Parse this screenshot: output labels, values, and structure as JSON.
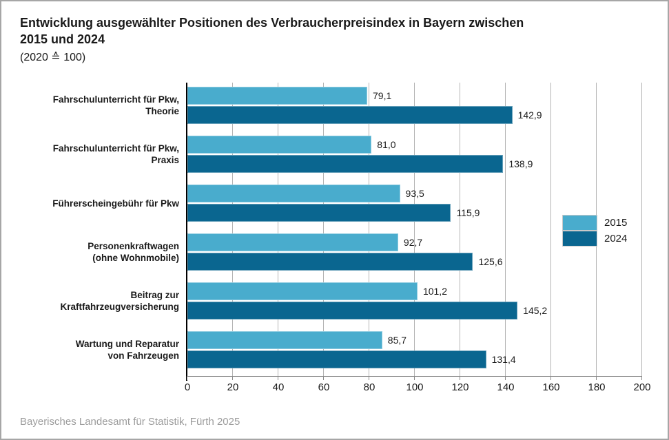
{
  "header": {
    "title": "Entwicklung ausgewählter Positionen des Verbraucherpreisindex in Bayern zwischen\n2015 und 2024",
    "subtitle": "(2020 ≙ 100)"
  },
  "footer": {
    "source": "Bayerisches Landesamt für Statistik, Fürth 2025"
  },
  "colors": {
    "series_2015": "#49ACCD",
    "series_2024": "#0A6690",
    "gridline": "#b3b3b3",
    "axis": "#000000",
    "source_text": "#9c9c9c"
  },
  "chart_data": {
    "type": "bar",
    "orientation": "horizontal",
    "title": "Entwicklung ausgewählter Positionen des Verbraucherpreisindex in Bayern zwischen 2015 und 2024",
    "subtitle": "(2020 ≙ 100)",
    "categories": [
      "Fahrschulunterricht für Pkw, Theorie",
      "Fahrschulunterricht für Pkw, Praxis",
      "Führerscheingebühr für Pkw",
      "Personenkraftwagen (ohne Wohnmobile)",
      "Beitrag zur Kraftfahrzeugversicherung",
      "Wartung und Reparatur von Fahrzeugen"
    ],
    "categories_display": [
      "Fahrschulunterricht für Pkw,\nTheorie",
      "Fahrschulunterricht für Pkw,\nPraxis",
      "Führerscheingebühr für Pkw",
      "Personenkraftwagen\n(ohne Wohnmobile)",
      "Beitrag zur\nKraftfahrzeugversicherung",
      "Wartung und Reparatur\nvon Fahrzeugen"
    ],
    "series": [
      {
        "name": "2015",
        "color": "#49ACCD",
        "values": [
          79.1,
          81.0,
          93.5,
          92.7,
          101.2,
          85.7
        ],
        "value_labels": [
          "79,1",
          "81,0",
          "93,5",
          "92,7",
          "101,2",
          "85,7"
        ]
      },
      {
        "name": "2024",
        "color": "#0A6690",
        "values": [
          142.9,
          138.9,
          115.9,
          125.6,
          145.2,
          131.4
        ],
        "value_labels": [
          "142,9",
          "138,9",
          "115,9",
          "125,6",
          "145,2",
          "131,4"
        ]
      }
    ],
    "xlim": [
      0,
      200
    ],
    "xticks": [
      0,
      20,
      40,
      60,
      80,
      100,
      120,
      140,
      160,
      180,
      200
    ],
    "grid": true,
    "legend_position": "right-middle"
  }
}
